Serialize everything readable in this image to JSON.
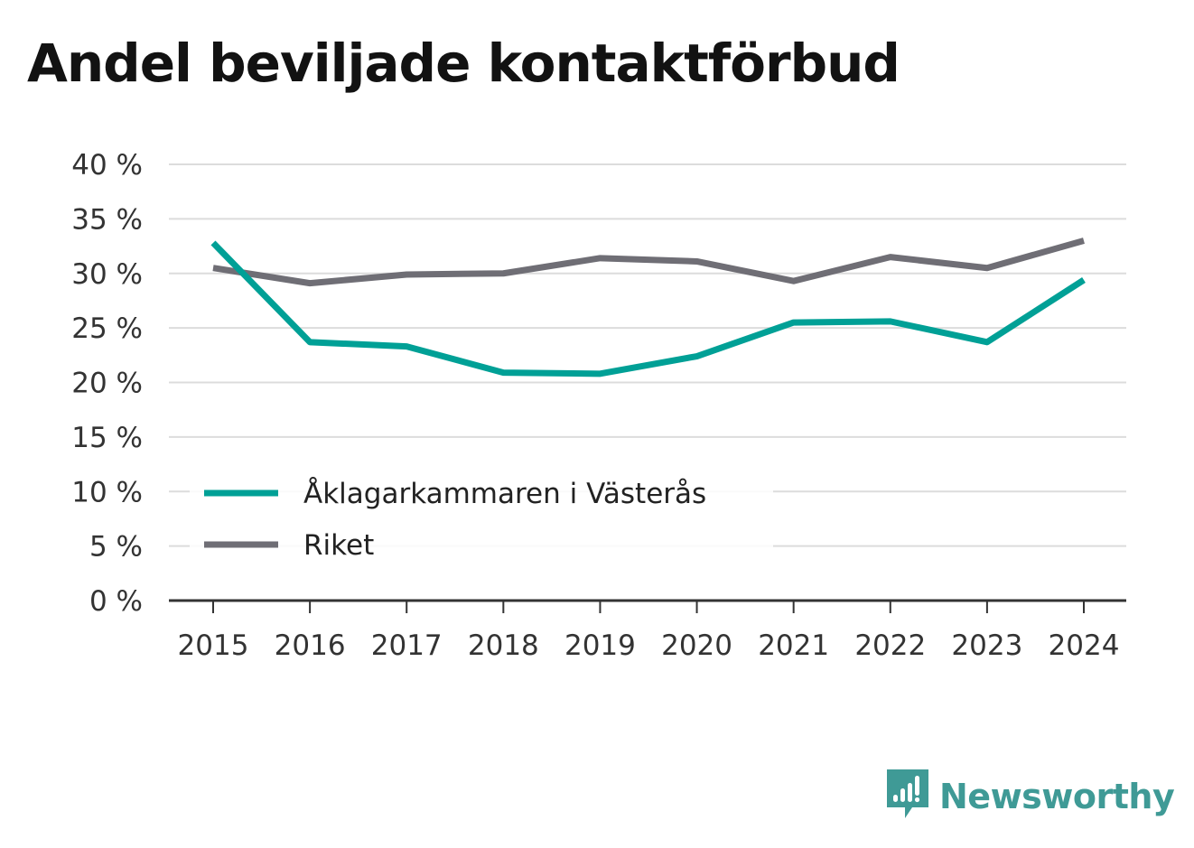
{
  "page": {
    "title": "Andel beviljade kontaktförbud"
  },
  "brand": {
    "name": "Newsworthy",
    "icon": "newsworthy-logo-icon",
    "color": "#3f9a96"
  },
  "colors": {
    "grid": "#dcdcdc",
    "axis": "#333333",
    "background": "#ffffff"
  },
  "chart_data": {
    "type": "line",
    "title": "Andel beviljade kontaktförbud",
    "x": [
      "2015",
      "2016",
      "2017",
      "2018",
      "2019",
      "2020",
      "2021",
      "2022",
      "2023",
      "2024"
    ],
    "ylim": [
      0,
      40
    ],
    "yticks": [
      0,
      5,
      10,
      15,
      20,
      25,
      30,
      35,
      40
    ],
    "ytick_labels": [
      "0 %",
      "5 %",
      "10 %",
      "15 %",
      "20 %",
      "25 %",
      "30 %",
      "35 %",
      "40 %"
    ],
    "y_unit": "%",
    "grid": true,
    "legend_position": "bottom-left",
    "series": [
      {
        "name": "Åklagarkammaren i Västerås",
        "color": "#00a096",
        "values": [
          32.8,
          23.7,
          23.3,
          20.9,
          20.8,
          22.4,
          25.5,
          25.6,
          23.7,
          29.4
        ]
      },
      {
        "name": "Riket",
        "color": "#6f6e75",
        "values": [
          30.5,
          29.1,
          29.9,
          30.0,
          31.4,
          31.1,
          29.3,
          31.5,
          30.5,
          33.0
        ]
      }
    ]
  }
}
